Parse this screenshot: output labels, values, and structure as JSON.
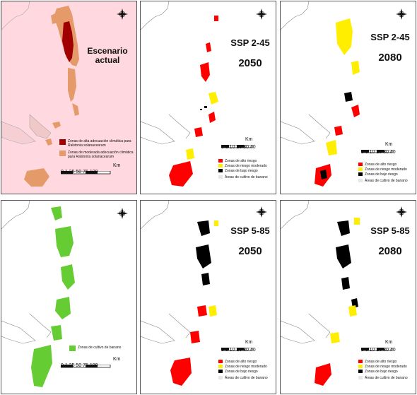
{
  "panels": {
    "actual": {
      "title_line1": "Escenario",
      "title_line2": "actual",
      "legend": [
        {
          "label": "Zonas de alta adecuación climática para Ralstonia solanacearum",
          "color": "#a00000"
        },
        {
          "label": "Zonas de moderada adecuación climática para Ralstonia solanacearum",
          "color": "#e59a6a"
        }
      ],
      "scale_ticks": "0 1  25    50    75   100",
      "scale_unit": "Km"
    },
    "ssp245_2050": {
      "title": "SSP 2-45",
      "year": "2050",
      "scale_ticks": "0 5 10  20  30  40",
      "scale_unit": "Km"
    },
    "ssp245_2080": {
      "title": "SSP 2-45",
      "year": "2080",
      "scale_ticks": "0 5 10  20  30  40",
      "scale_unit": "Km"
    },
    "banano": {
      "legend_label": "Zonas de cultivo de banano",
      "legend_color": "#66cc33",
      "scale_ticks": "0 1  25    50    75   100",
      "scale_unit": "Km"
    },
    "ssp585_2050": {
      "title": "SSP 5-85",
      "year": "2050",
      "scale_ticks": "0 5 10  20  30  40",
      "scale_unit": "Km"
    },
    "ssp585_2080": {
      "title": "SSP 5-85",
      "year": "2080",
      "scale_ticks": "0 5 10  20  30  40",
      "scale_unit": "Km"
    }
  },
  "risk_legend": [
    {
      "label": "Zonas de alto riesgo",
      "color": "#ff0000"
    },
    {
      "label": "Zonas de riesgo moderado",
      "color": "#ffee00"
    },
    {
      "label": "Zonas de bajo  riesgo",
      "color": "#000000"
    },
    {
      "label": "Áreas de cultivo de banano",
      "color": "#e6e6e6"
    }
  ],
  "compass": {
    "n": "N",
    "s": "S",
    "e": "E",
    "w": "W"
  },
  "colors": {
    "sea_actual": "#ffd9df",
    "land_moderate": "#e59a6a",
    "land_high": "#a00000",
    "risk_high": "#ff0000",
    "risk_moderate": "#ffee00",
    "risk_low": "#000000",
    "banana": "#66cc33",
    "coastline": "#888888"
  }
}
